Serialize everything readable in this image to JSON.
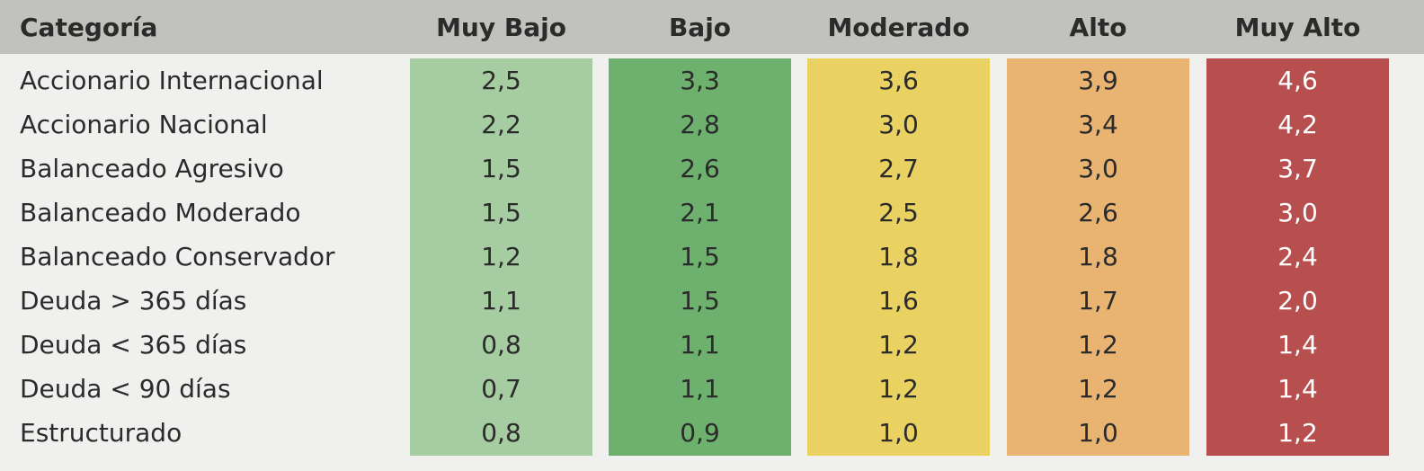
{
  "table": {
    "header": [
      "Categoría",
      "Muy Bajo",
      "Bajo",
      "Moderado",
      "Alto",
      "Muy Alto"
    ],
    "rows": [
      [
        "Accionario Internacional",
        "2,5",
        "3,3",
        "3,6",
        "3,9",
        "4,6"
      ],
      [
        "Accionario Nacional",
        "2,2",
        "2,8",
        "3,0",
        "3,4",
        "4,2"
      ],
      [
        "Balanceado Agresivo",
        "1,5",
        "2,6",
        "2,7",
        "3,0",
        "3,7"
      ],
      [
        "Balanceado Moderado",
        "1,5",
        "2,1",
        "2,5",
        "2,6",
        "3,0"
      ],
      [
        "Balanceado Conservador",
        "1,2",
        "1,5",
        "1,8",
        "1,8",
        "2,4"
      ],
      [
        "Deuda > 365 días",
        "1,1",
        "1,5",
        "1,6",
        "1,7",
        "2,0"
      ],
      [
        "Deuda < 365 días",
        "0,8",
        "1,1",
        "1,2",
        "1,2",
        "1,4"
      ],
      [
        "Deuda < 90 días",
        "0,7",
        "1,1",
        "1,2",
        "1,2",
        "1,4"
      ],
      [
        "Estructurado",
        "0,8",
        "0,9",
        "1,0",
        "1,0",
        "1,2"
      ]
    ]
  }
}
